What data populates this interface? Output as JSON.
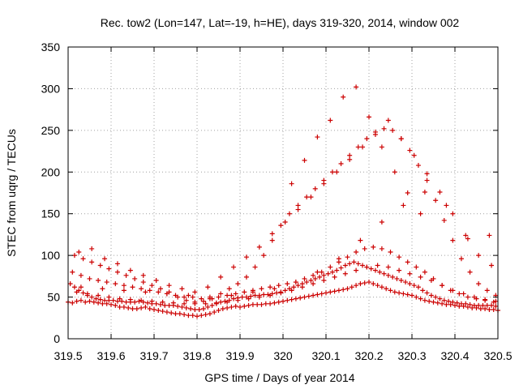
{
  "chart_data": {
    "type": "scatter",
    "title": "Rec. tow2 (Lon=147, Lat=-19, h=HE), days 319-320, 2014, window 002",
    "xlabel": "GPS time / Days of year 2014",
    "ylabel": "STEC from uqrg / TECUs",
    "xlim": [
      319.5,
      320.5
    ],
    "ylim": [
      0,
      350
    ],
    "xticks": [
      319.5,
      319.6,
      319.7,
      319.8,
      319.9,
      320.0,
      320.1,
      320.2,
      320.3,
      320.4,
      320.5
    ],
    "xtick_labels": [
      "319.5",
      "319.6",
      "319.7",
      "319.8",
      "319.9",
      "320",
      "320.1",
      "320.2",
      "320.3",
      "320.4",
      "320.5"
    ],
    "yticks": [
      0,
      50,
      100,
      150,
      200,
      250,
      300,
      350
    ],
    "ytick_labels": [
      "0",
      "50",
      "100",
      "150",
      "200",
      "250",
      "300",
      "350"
    ],
    "grid": true,
    "marker": "plus",
    "color": "#cc0000",
    "series": [
      {
        "x": [
          319.5,
          319.51,
          319.52,
          319.53,
          319.54,
          319.55,
          319.56,
          319.57,
          319.58,
          319.59,
          319.6,
          319.61,
          319.62,
          319.63,
          319.64,
          319.65,
          319.66,
          319.67,
          319.68,
          319.69,
          319.7,
          319.71,
          319.72,
          319.73,
          319.74,
          319.75,
          319.76,
          319.77,
          319.78,
          319.79,
          319.8,
          319.81,
          319.82,
          319.83,
          319.84,
          319.85,
          319.86,
          319.87,
          319.88,
          319.89,
          319.9,
          319.91,
          319.92,
          319.93,
          319.94,
          319.95,
          319.96,
          319.97,
          319.98,
          319.99,
          320.0,
          320.01,
          320.02,
          320.03,
          320.04,
          320.05,
          320.06,
          320.07,
          320.08,
          320.09,
          320.1,
          320.11,
          320.12,
          320.13,
          320.14,
          320.15,
          320.16,
          320.17,
          320.18,
          320.19,
          320.2,
          320.21,
          320.22,
          320.23,
          320.24,
          320.25,
          320.26,
          320.27,
          320.28,
          320.29,
          320.3,
          320.31,
          320.32,
          320.33,
          320.34,
          320.35,
          320.36,
          320.37,
          320.38,
          320.39,
          320.4,
          320.41,
          320.42,
          320.43,
          320.44,
          320.45,
          320.46,
          320.47,
          320.48,
          320.49,
          320.5
        ],
        "y": [
          44,
          43,
          45,
          46,
          44,
          45,
          44,
          43,
          42,
          42,
          41,
          40,
          38,
          38,
          37,
          36,
          36,
          37,
          38,
          36,
          35,
          34,
          33,
          32,
          31,
          30,
          30,
          29,
          28,
          28,
          27,
          28,
          29,
          30,
          32,
          34,
          36,
          37,
          38,
          39,
          38,
          39,
          40,
          41,
          41,
          41,
          42,
          42,
          43,
          44,
          45,
          46,
          47,
          48,
          49,
          50,
          51,
          52,
          53,
          54,
          55,
          56,
          57,
          58,
          59,
          60,
          62,
          64,
          66,
          67,
          68,
          66,
          64,
          62,
          60,
          58,
          56,
          55,
          54,
          53,
          52,
          50,
          48,
          46,
          45,
          44,
          43,
          42,
          41,
          41,
          40,
          39,
          39,
          38,
          37,
          37,
          36,
          36,
          35,
          35,
          34
        ]
      },
      {
        "x": [
          319.505,
          319.515,
          319.525,
          319.535,
          319.545,
          319.555,
          319.565,
          319.575,
          319.585,
          319.595,
          319.605,
          319.615,
          319.625,
          319.635,
          319.645,
          319.655,
          319.665,
          319.675,
          319.685,
          319.695,
          319.705,
          319.715,
          319.725,
          319.735,
          319.745,
          319.755,
          319.765,
          319.775,
          319.785,
          319.795,
          319.805,
          319.815,
          319.825,
          319.835,
          319.845,
          319.855,
          319.865,
          319.875,
          319.885,
          319.895,
          319.905,
          319.915,
          319.925,
          319.935,
          319.945,
          319.955,
          319.965,
          319.975,
          319.985,
          319.995,
          320.005,
          320.015,
          320.025,
          320.035,
          320.045,
          320.055,
          320.065,
          320.075,
          320.085,
          320.095,
          320.105,
          320.115,
          320.125,
          320.135,
          320.145,
          320.155,
          320.165,
          320.175,
          320.185,
          320.195,
          320.205,
          320.215,
          320.225,
          320.235,
          320.245,
          320.255,
          320.265,
          320.275,
          320.285,
          320.295,
          320.305,
          320.315,
          320.325,
          320.335,
          320.345,
          320.355,
          320.365,
          320.375,
          320.385,
          320.395,
          320.405,
          320.415,
          320.425,
          320.435,
          320.445,
          320.455,
          320.465,
          320.475,
          320.485,
          320.495
        ],
        "y": [
          66,
          62,
          58,
          55,
          52,
          50,
          48,
          47,
          46,
          46,
          46,
          45,
          45,
          44,
          44,
          44,
          45,
          44,
          43,
          42,
          42,
          41,
          40,
          40,
          40,
          39,
          38,
          37,
          36,
          35,
          35,
          36,
          38,
          40,
          42,
          44,
          45,
          46,
          48,
          49,
          50,
          50,
          51,
          52,
          52,
          53,
          53,
          54,
          55,
          56,
          58,
          60,
          62,
          64,
          66,
          68,
          70,
          72,
          74,
          76,
          78,
          80,
          82,
          85,
          88,
          90,
          92,
          90,
          88,
          86,
          84,
          82,
          80,
          78,
          76,
          74,
          72,
          70,
          68,
          66,
          64,
          62,
          58,
          55,
          52,
          50,
          48,
          46,
          45,
          44,
          43,
          42,
          42,
          41,
          40,
          40,
          40,
          40,
          40,
          39
        ]
      },
      {
        "x": [
          319.51,
          319.53,
          319.55,
          319.57,
          319.59,
          319.61,
          319.63,
          319.65,
          319.67,
          319.69,
          319.71,
          319.73,
          319.75,
          319.77,
          319.79,
          319.81,
          319.83,
          319.85,
          319.87,
          319.89,
          319.91,
          319.93,
          319.95,
          319.97,
          319.99,
          320.01,
          320.03,
          320.05,
          320.07,
          320.09,
          320.11,
          320.13,
          320.15,
          320.17,
          320.19,
          320.21,
          320.23,
          320.25,
          320.27,
          320.29,
          320.31,
          320.33,
          320.35,
          320.37,
          320.39,
          320.41,
          320.43,
          320.45,
          320.47,
          320.49
        ],
        "y": [
          80,
          76,
          72,
          70,
          68,
          66,
          64,
          62,
          60,
          58,
          56,
          54,
          52,
          50,
          50,
          48,
          48,
          50,
          52,
          54,
          56,
          58,
          60,
          62,
          64,
          66,
          68,
          72,
          76,
          80,
          86,
          92,
          98,
          104,
          108,
          110,
          108,
          104,
          98,
          92,
          86,
          80,
          72,
          64,
          58,
          54,
          50,
          48,
          46,
          44
        ]
      },
      {
        "x": [
          319.515,
          319.535,
          319.555,
          319.575,
          319.595,
          319.615,
          319.635,
          319.655,
          319.675,
          319.695,
          319.715,
          319.735,
          319.755,
          319.775,
          319.795,
          319.815,
          319.835,
          319.855,
          319.875,
          319.895,
          319.915,
          319.935,
          319.955,
          319.975,
          319.995,
          320.015,
          320.035,
          320.055,
          320.075,
          320.095,
          320.115,
          320.135,
          320.155,
          320.175,
          320.195,
          320.215,
          320.235,
          320.255,
          320.275,
          320.295,
          320.315,
          320.335,
          320.355,
          320.375,
          320.395,
          320.415,
          320.435,
          320.455,
          320.475,
          320.495
        ],
        "y": [
          100,
          96,
          92,
          88,
          84,
          80,
          76,
          72,
          68,
          64,
          60,
          56,
          50,
          46,
          44,
          45,
          48,
          54,
          60,
          66,
          74,
          86,
          100,
          118,
          136,
          150,
          160,
          170,
          180,
          190,
          200,
          210,
          220,
          230,
          240,
          248,
          252,
          250,
          240,
          226,
          208,
          190,
          166,
          142,
          118,
          96,
          80,
          66,
          58,
          52
        ]
      },
      {
        "x": [
          319.52,
          319.545,
          319.57,
          319.595,
          319.62,
          319.645,
          319.67,
          319.695,
          319.72,
          319.745,
          319.77,
          319.795,
          319.82,
          319.845,
          319.87,
          319.895,
          319.92,
          319.945,
          319.97,
          319.995,
          320.02,
          320.045,
          320.07,
          320.095,
          320.12,
          320.145,
          320.17,
          320.195,
          320.22,
          320.245,
          320.27,
          320.295,
          320.32,
          320.345,
          320.37,
          320.395,
          320.42,
          320.445,
          320.47,
          320.495
        ],
        "y": [
          56,
          54,
          52,
          50,
          48,
          47,
          46,
          45,
          44,
          43,
          42,
          42,
          42,
          43,
          44,
          46,
          48,
          50,
          52,
          55,
          58,
          62,
          66,
          70,
          74,
          78,
          82,
          86,
          88,
          86,
          82,
          78,
          74,
          70,
          64,
          58,
          54,
          50,
          47,
          45
        ]
      },
      {
        "x": [
          319.525,
          319.555,
          319.585,
          319.615,
          319.645,
          319.675,
          319.705,
          319.735,
          319.765,
          319.795,
          319.825,
          319.855,
          319.885,
          319.915,
          319.945,
          319.975,
          320.005,
          320.035,
          320.065,
          320.095,
          320.125,
          320.155,
          320.185,
          320.215,
          320.245,
          320.275,
          320.305,
          320.335,
          320.365,
          320.395,
          320.425,
          320.455,
          320.485
        ],
        "y": [
          104,
          108,
          96,
          90,
          82,
          76,
          70,
          64,
          60,
          56,
          62,
          74,
          86,
          98,
          110,
          126,
          140,
          155,
          170,
          186,
          200,
          215,
          230,
          245,
          262,
          240,
          220,
          198,
          176,
          150,
          124,
          100,
          88
        ]
      },
      {
        "x": [
          320.02,
          320.05,
          320.08,
          320.11,
          320.14,
          320.17,
          320.2,
          320.23,
          320.26,
          320.29,
          320.32
        ],
        "y": [
          186,
          214,
          242,
          262,
          290,
          302,
          266,
          230,
          200,
          175,
          150
        ]
      },
      {
        "x": [
          319.53,
          319.58,
          319.63,
          319.68,
          319.73,
          319.78,
          319.83,
          319.88,
          319.93,
          319.98,
          320.03,
          320.08,
          320.13,
          320.18,
          320.23,
          320.28,
          320.33,
          320.38,
          320.43,
          320.48
        ],
        "y": [
          62,
          60,
          58,
          56,
          54,
          52,
          50,
          52,
          56,
          60,
          68,
          80,
          96,
          118,
          140,
          160,
          176,
          160,
          120,
          124
        ]
      }
    ]
  }
}
